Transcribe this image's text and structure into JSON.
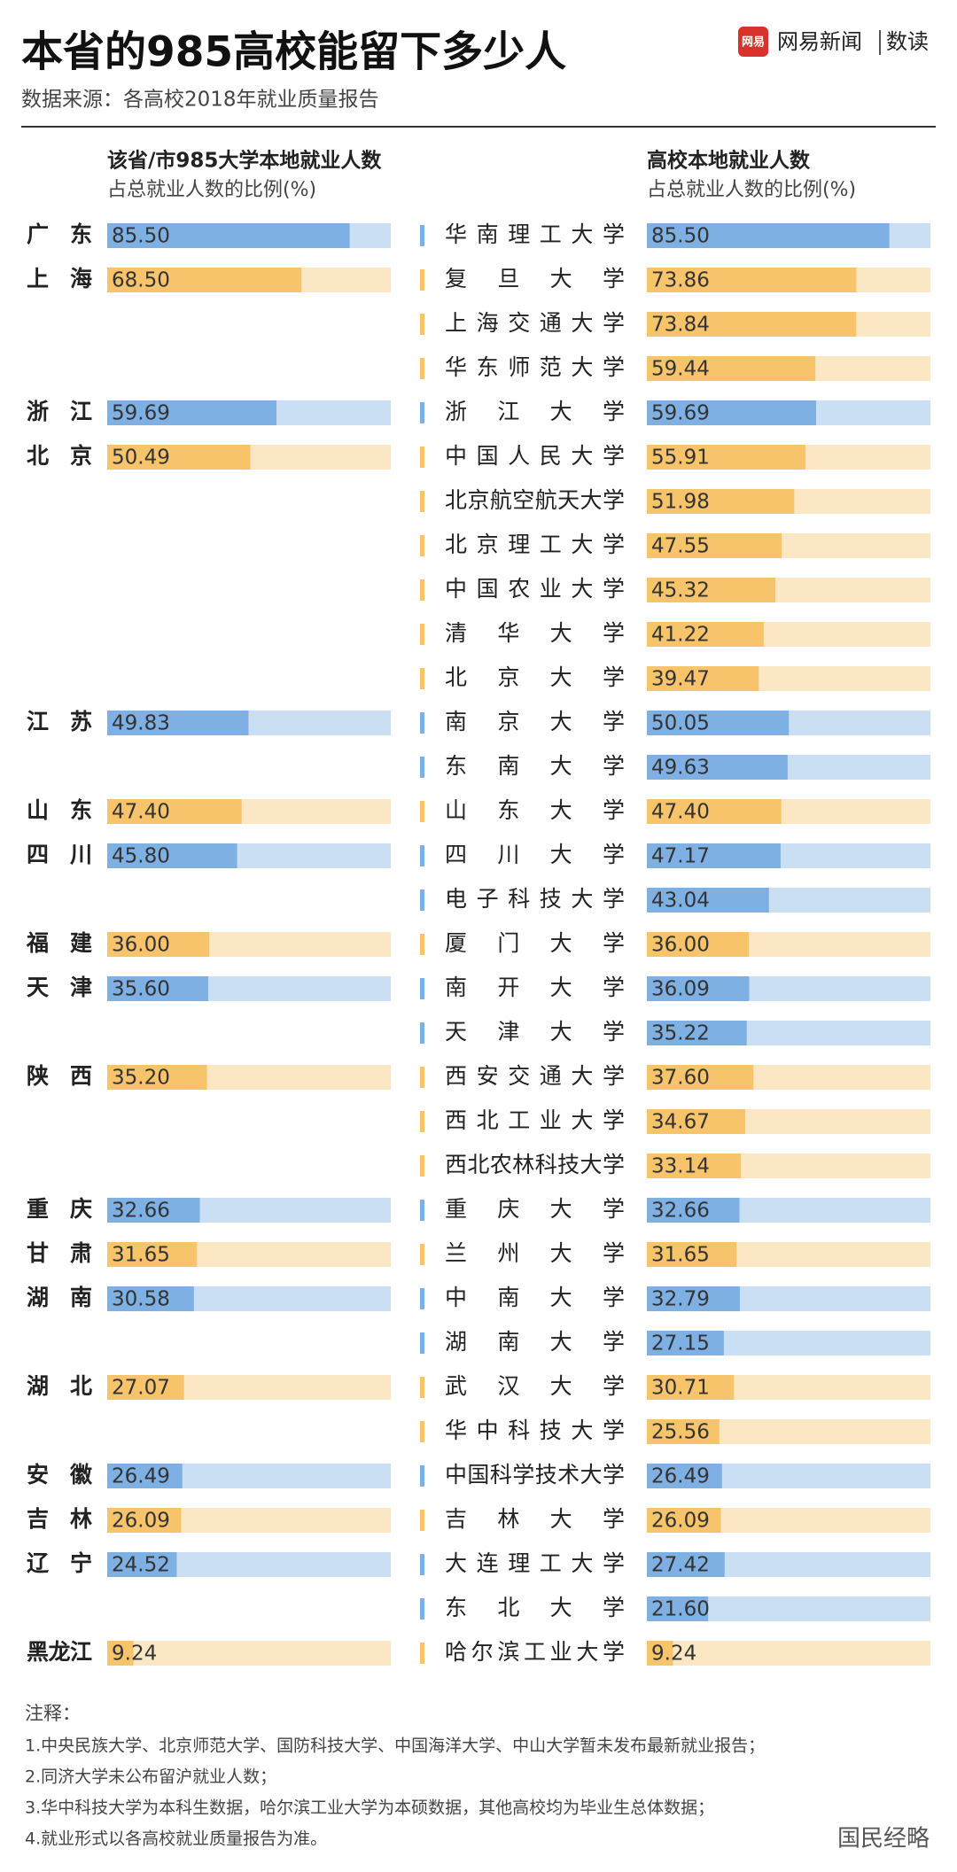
{
  "chart_data": {
    "type": "paired-bar",
    "title": "本省的985高校能留下多少人",
    "subtitle": "数据来源：各高校2018年就业质量报告",
    "logo": {
      "icon": "网易",
      "brand": "网易新闻",
      "section": "数读"
    },
    "left_header": {
      "title": "该省/市985大学本地就业人数",
      "subtitle": "占总就业人数的比例(%)"
    },
    "right_header": {
      "title": "高校本地就业人数",
      "subtitle": "占总就业人数的比例(%)"
    },
    "xlim": [
      0,
      100
    ],
    "provinces": [
      {
        "name": "广东",
        "value": 85.5,
        "label": "85.50",
        "color": "#7eb0e4",
        "universities": [
          {
            "name": "华南理工大学",
            "value": 85.5,
            "label": "85.50"
          }
        ]
      },
      {
        "name": "上海",
        "value": 68.5,
        "label": "68.50",
        "color": "#f7c46c",
        "universities": [
          {
            "name": "复旦大学",
            "value": 73.86,
            "label": "73.86"
          },
          {
            "name": "上海交通大学",
            "value": 73.84,
            "label": "73.84"
          },
          {
            "name": "华东师范大学",
            "value": 59.44,
            "label": "59.44"
          }
        ]
      },
      {
        "name": "浙江",
        "value": 59.69,
        "label": "59.69",
        "color": "#7eb0e4",
        "universities": [
          {
            "name": "浙江大学",
            "value": 59.69,
            "label": "59.69"
          }
        ]
      },
      {
        "name": "北京",
        "value": 50.49,
        "label": "50.49",
        "color": "#f7c46c",
        "universities": [
          {
            "name": "中国人民大学",
            "value": 55.91,
            "label": "55.91"
          },
          {
            "name": "北京航空航天大学",
            "value": 51.98,
            "label": "51.98"
          },
          {
            "name": "北京理工大学",
            "value": 47.55,
            "label": "47.55"
          },
          {
            "name": "中国农业大学",
            "value": 45.32,
            "label": "45.32"
          },
          {
            "name": "清华大学",
            "value": 41.22,
            "label": "41.22"
          },
          {
            "name": "北京大学",
            "value": 39.47,
            "label": "39.47"
          }
        ]
      },
      {
        "name": "江苏",
        "value": 49.83,
        "label": "49.83",
        "color": "#7eb0e4",
        "universities": [
          {
            "name": "南京大学",
            "value": 50.05,
            "label": "50.05"
          },
          {
            "name": "东南大学",
            "value": 49.63,
            "label": "49.63"
          }
        ]
      },
      {
        "name": "山东",
        "value": 47.4,
        "label": "47.40",
        "color": "#f7c46c",
        "universities": [
          {
            "name": "山东大学",
            "value": 47.4,
            "label": "47.40"
          }
        ]
      },
      {
        "name": "四川",
        "value": 45.8,
        "label": "45.80",
        "color": "#7eb0e4",
        "universities": [
          {
            "name": "四川大学",
            "value": 47.17,
            "label": "47.17"
          },
          {
            "name": "电子科技大学",
            "value": 43.04,
            "label": "43.04"
          }
        ]
      },
      {
        "name": "福建",
        "value": 36,
        "label": "36.00",
        "color": "#f7c46c",
        "universities": [
          {
            "name": "厦门大学",
            "value": 36,
            "label": "36.00"
          }
        ]
      },
      {
        "name": "天津",
        "value": 35.6,
        "label": "35.60",
        "color": "#7eb0e4",
        "universities": [
          {
            "name": "南开大学",
            "value": 36.09,
            "label": "36.09"
          },
          {
            "name": "天津大学",
            "value": 35.22,
            "label": "35.22"
          }
        ]
      },
      {
        "name": "陕西",
        "value": 35.2,
        "label": "35.20",
        "color": "#f7c46c",
        "universities": [
          {
            "name": "西安交通大学",
            "value": 37.6,
            "label": "37.60"
          },
          {
            "name": "西北工业大学",
            "value": 34.67,
            "label": "34.67"
          },
          {
            "name": "西北农林科技大学",
            "value": 33.14,
            "label": "33.14"
          }
        ]
      },
      {
        "name": "重庆",
        "value": 32.66,
        "label": "32.66",
        "color": "#7eb0e4",
        "universities": [
          {
            "name": "重庆大学",
            "value": 32.66,
            "label": "32.66"
          }
        ]
      },
      {
        "name": "甘肃",
        "value": 31.65,
        "label": "31.65",
        "color": "#f7c46c",
        "universities": [
          {
            "name": "兰州大学",
            "value": 31.65,
            "label": "31.65"
          }
        ]
      },
      {
        "name": "湖南",
        "value": 30.58,
        "label": "30.58",
        "color": "#7eb0e4",
        "universities": [
          {
            "name": "中南大学",
            "value": 32.79,
            "label": "32.79"
          },
          {
            "name": "湖南大学",
            "value": 27.15,
            "label": "27.15"
          }
        ]
      },
      {
        "name": "湖北",
        "value": 27.07,
        "label": "27.07",
        "color": "#f7c46c",
        "universities": [
          {
            "name": "武汉大学",
            "value": 30.71,
            "label": "30.71"
          },
          {
            "name": "华中科技大学",
            "value": 25.56,
            "label": "25.56"
          }
        ]
      },
      {
        "name": "安徽",
        "value": 26.49,
        "label": "26.49",
        "color": "#7eb0e4",
        "universities": [
          {
            "name": "中国科学技术大学",
            "value": 26.49,
            "label": "26.49"
          }
        ]
      },
      {
        "name": "吉林",
        "value": 26.09,
        "label": "26.09",
        "color": "#f7c46c",
        "universities": [
          {
            "name": "吉林大学",
            "value": 26.09,
            "label": "26.09"
          }
        ]
      },
      {
        "name": "辽宁",
        "value": 24.52,
        "label": "24.52",
        "color": "#7eb0e4",
        "universities": [
          {
            "name": "大连理工大学",
            "value": 27.42,
            "label": "27.42"
          },
          {
            "name": "东北大学",
            "value": 21.6,
            "label": "21.60"
          }
        ]
      },
      {
        "name": "黑龙江",
        "value": 9.24,
        "label": "9.24",
        "color": "#f7c46c",
        "universities": [
          {
            "name": "哈尔滨工业大学",
            "value": 9.24,
            "label": "9.24"
          }
        ]
      }
    ],
    "notes_title": "注释：",
    "notes": [
      "1.中央民族大学、北京师范大学、国防科技大学、中国海洋大学、中山大学暂未发布最新就业报告；",
      "2.同济大学未公布留沪就业人数；",
      "3.华中科技大学为本科生数据，哈尔滨工业大学为本硕数据，其他高校均为毕业生总体数据；",
      "4.就业形式以各高校就业质量报告为准。"
    ],
    "watermark": "国民经略"
  }
}
